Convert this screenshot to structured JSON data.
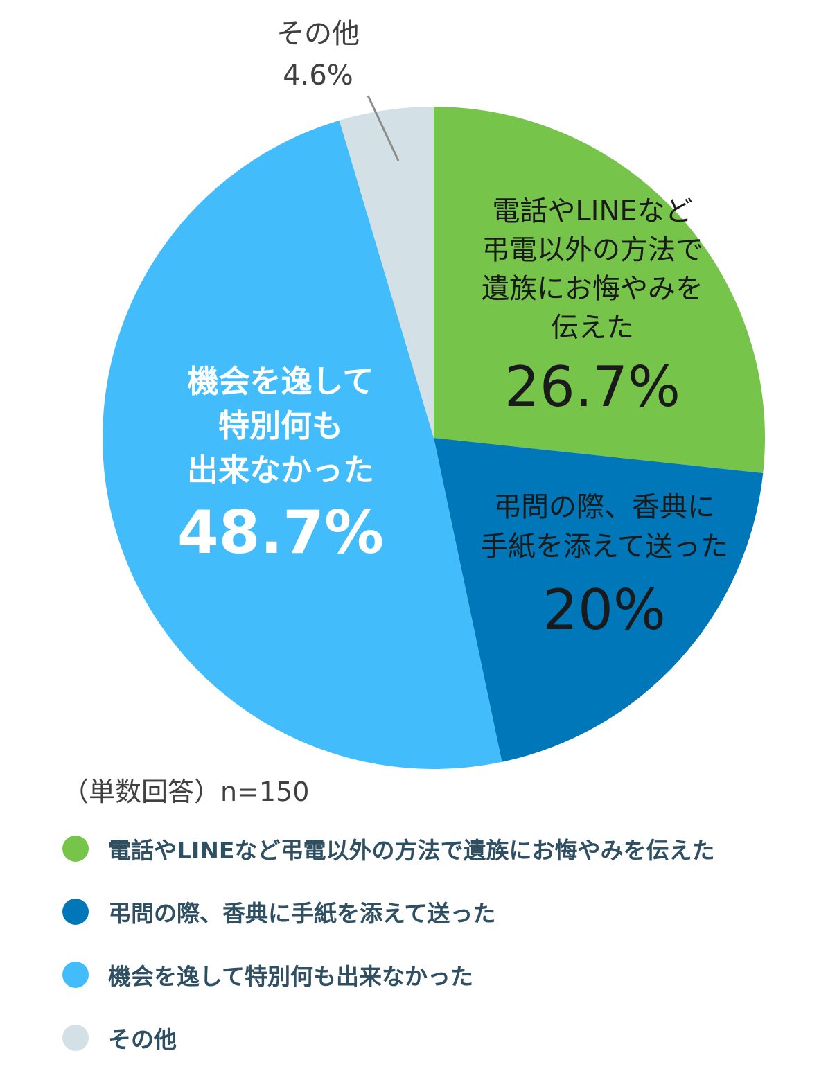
{
  "chart_data": {
    "type": "pie",
    "start_angle": "12 o'clock",
    "direction": "clockwise",
    "slices": [
      {
        "label": "電話やLINEなど弔電以外の方法で遺族にお悔やみを伝えた",
        "chart_label_lines": [
          "電話やLINEなど",
          "弔電以外の方法で",
          "遺族にお悔やみを",
          "伝えた"
        ],
        "value": 26.7,
        "value_label": "26.7%",
        "color": "#76c44a",
        "label_color": "#1a1a1a"
      },
      {
        "label": "弔問の際、香典に手紙を添えて送った",
        "chart_label_lines": [
          "弔問の際、香典に",
          "手紙を添えて送った"
        ],
        "value": 20,
        "value_label": "20%",
        "color": "#0077b8",
        "label_color": "#1a1a1a"
      },
      {
        "label": "機会を逸して特別何も出来なかった",
        "chart_label_lines": [
          "機会を逸して",
          "特別何も",
          "出来なかった"
        ],
        "value": 48.7,
        "value_label": "48.7%",
        "color": "#43bcfc",
        "label_color": "#ffffff"
      },
      {
        "label": "その他",
        "chart_label_lines": [
          "その他"
        ],
        "value": 4.6,
        "value_label": "4.6%",
        "color": "#d3e0e5",
        "label_color": "#404040"
      }
    ],
    "legend_position": "bottom-left"
  },
  "note": "（単数回答）n=150"
}
